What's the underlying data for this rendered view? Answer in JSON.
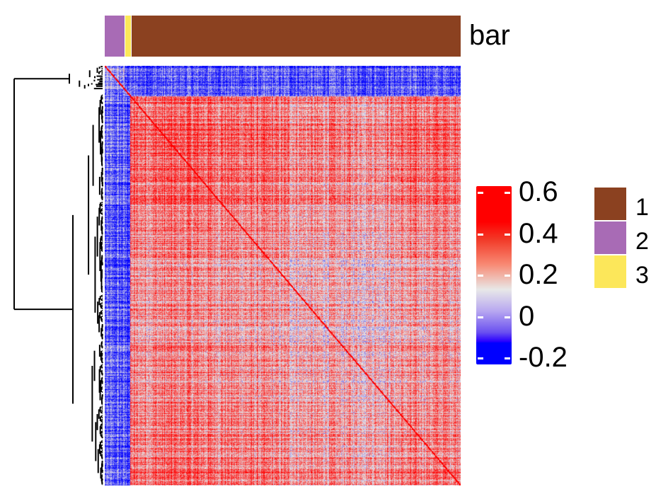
{
  "chart_data": {
    "type": "heatmap",
    "title": "",
    "annotation": {
      "name": "bar",
      "groups_in_order": [
        "2",
        "3",
        "1"
      ],
      "group_fractions": [
        0.056,
        0.016,
        0.928
      ]
    },
    "color_scale": {
      "ticks": [
        "0.6",
        "0.4",
        "0.2",
        "0",
        "-0.2"
      ],
      "tick_values": [
        0.6,
        0.4,
        0.2,
        0,
        -0.2
      ],
      "range": [
        -0.2,
        0.6
      ],
      "colors": {
        "low": "#0000ff",
        "mid": "#e8e8e8",
        "high": "#ff0000"
      }
    },
    "block_means": {
      "within_1": 0.4,
      "within_2": 0.05,
      "between_2_and_1": -0.1,
      "between_3_and_1": -0.05,
      "diagonal": 1.0
    },
    "legend": {
      "placement": "right",
      "items": [
        {
          "label": "1",
          "color": "#8B4120"
        },
        {
          "label": "2",
          "color": "#A86BB5"
        },
        {
          "label": "3",
          "color": "#FCE75A"
        }
      ]
    },
    "dendrogram": "rows, left"
  }
}
